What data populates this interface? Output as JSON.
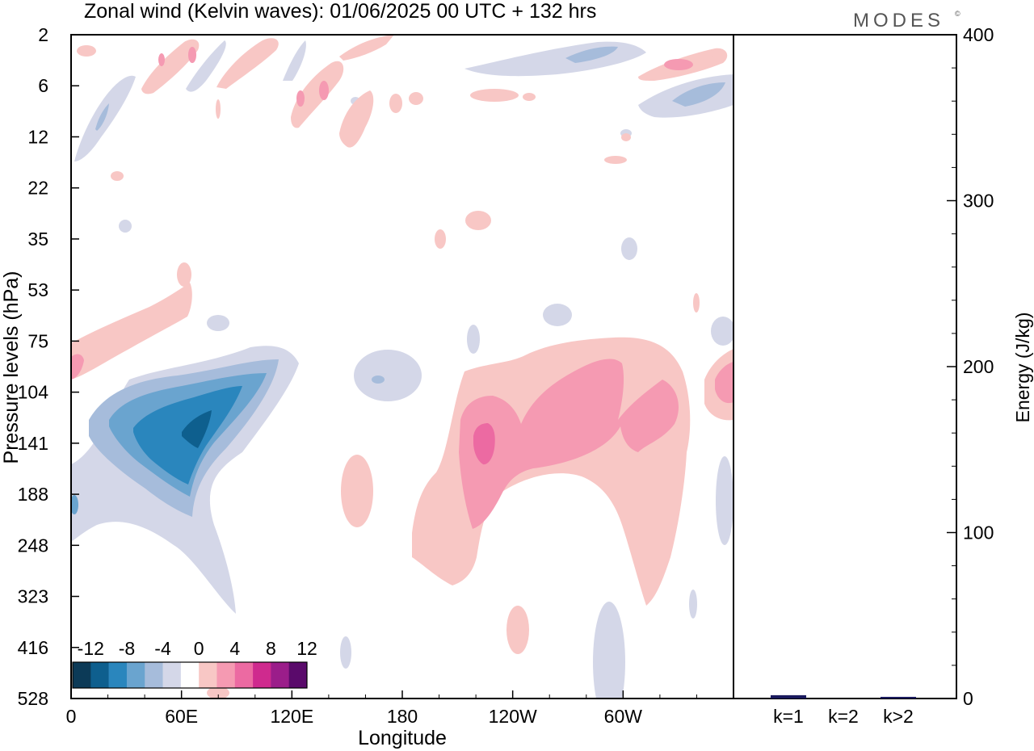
{
  "title": "Zonal wind (Kelvin waves):  01/06/2025  00 UTC  + 132 hrs",
  "brand": "MODES",
  "brand_mark": "©",
  "chart_data": [
    {
      "type": "heatmap",
      "title": "Zonal wind (Kelvin waves):  01/06/2025  00 UTC  + 132 hrs",
      "xlabel": "Longitude",
      "ylabel": "Pressure levels (hPa)",
      "x_ticks": [
        "0",
        "60E",
        "120E",
        "180",
        "120W",
        "60W"
      ],
      "x_range_deg": [
        0,
        360
      ],
      "y_ticks": [
        "2",
        "6",
        "12",
        "22",
        "35",
        "53",
        "75",
        "104",
        "141",
        "188",
        "248",
        "323",
        "416",
        "528"
      ],
      "colorbar": {
        "labels": [
          "-12",
          "-8",
          "-4",
          "0",
          "4",
          "8",
          "12"
        ],
        "levels": [
          -14,
          -12,
          -10,
          -8,
          -6,
          -4,
          -2,
          2,
          4,
          6,
          8,
          10,
          12,
          14
        ],
        "colors": [
          "#0c3a57",
          "#0e5f8e",
          "#2a86bd",
          "#6aa4cf",
          "#a6bcdb",
          "#d4d7e8",
          "#ffffff",
          "#f8c7c5",
          "#f59ab2",
          "#ec6aa2",
          "#cf2a8e",
          "#9b1d8a",
          "#5a0a6b"
        ]
      },
      "features": [
        {
          "sign": "negative",
          "peak": -12,
          "lon_range": [
            10,
            115
          ],
          "level_range_hPa": [
            75,
            323
          ]
        },
        {
          "sign": "positive",
          "peak": 8,
          "lon_range": [
            200,
            330
          ],
          "level_range_hPa": [
            75,
            323
          ]
        },
        {
          "sign": "positive",
          "peak": 4,
          "lon_range": [
            0,
            70
          ],
          "level_range_hPa": [
            53,
            104
          ]
        },
        {
          "sign": "mixed",
          "peak": 6,
          "lon_range": [
            0,
            360
          ],
          "level_range_hPa": [
            2,
            12
          ]
        }
      ]
    },
    {
      "type": "bar",
      "ylabel": "Energy (J/kg)",
      "categories": [
        "k=1",
        "k=2",
        "k>2"
      ],
      "values": [
        2,
        0,
        1
      ],
      "ylim": [
        0,
        400
      ],
      "y_ticks": [
        "0",
        "100",
        "200",
        "300",
        "400"
      ],
      "bar_color": "#1a1a5e"
    }
  ]
}
